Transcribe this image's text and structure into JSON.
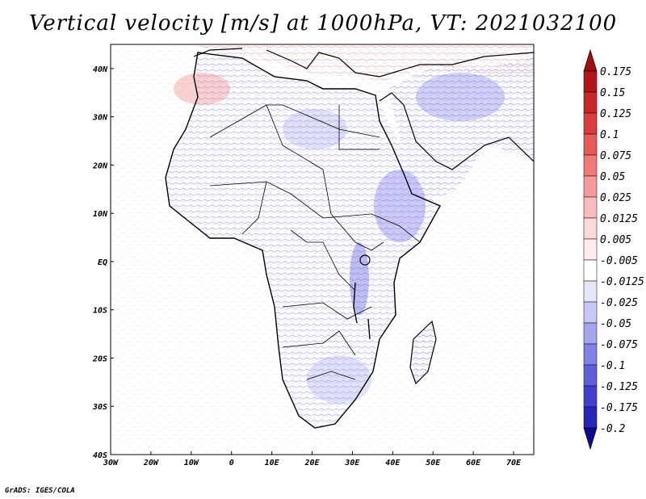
{
  "title": "Vertical velocity [m/s] at 1000hPa, VT: 2021032100",
  "footer": "GrADS: IGES/COLA",
  "map": {
    "lon_range": [
      -30,
      75
    ],
    "lat_range": [
      -40,
      45
    ],
    "x_ticks": [
      {
        "lon": -30,
        "label": "30W"
      },
      {
        "lon": -20,
        "label": "20W"
      },
      {
        "lon": -10,
        "label": "10W"
      },
      {
        "lon": 0,
        "label": "0"
      },
      {
        "lon": 10,
        "label": "10E"
      },
      {
        "lon": 20,
        "label": "20E"
      },
      {
        "lon": 30,
        "label": "30E"
      },
      {
        "lon": 40,
        "label": "40E"
      },
      {
        "lon": 50,
        "label": "50E"
      },
      {
        "lon": 60,
        "label": "60E"
      },
      {
        "lon": 70,
        "label": "70E"
      }
    ],
    "y_ticks": [
      {
        "lat": 40,
        "label": "40N"
      },
      {
        "lat": 30,
        "label": "30N"
      },
      {
        "lat": 20,
        "label": "20N"
      },
      {
        "lat": 10,
        "label": "10N"
      },
      {
        "lat": 0,
        "label": "EQ"
      },
      {
        "lat": -10,
        "label": "10S"
      },
      {
        "lat": -20,
        "label": "20S"
      },
      {
        "lat": -30,
        "label": "30S"
      },
      {
        "lat": -40,
        "label": "40S"
      }
    ]
  },
  "colorbar": {
    "levels": [
      {
        "label": "0.175",
        "color": "#b4141e"
      },
      {
        "label": "0.15",
        "color": "#c8262a"
      },
      {
        "label": "0.125",
        "color": "#dc3c3c"
      },
      {
        "label": "0.1",
        "color": "#e85a5a"
      },
      {
        "label": "0.075",
        "color": "#f07a7a"
      },
      {
        "label": "0.05",
        "color": "#f59a9a"
      },
      {
        "label": "0.025",
        "color": "#f9bcbc"
      },
      {
        "label": "0.0125",
        "color": "#fcd8d8"
      },
      {
        "label": "0.005",
        "color": "#feecec"
      },
      {
        "label": "-0.005",
        "color": "#ffffff"
      },
      {
        "label": "-0.0125",
        "color": "#e6e6fa"
      },
      {
        "label": "-0.025",
        "color": "#c8c8f5"
      },
      {
        "label": "-0.05",
        "color": "#a5a5ee"
      },
      {
        "label": "-0.075",
        "color": "#8282e6"
      },
      {
        "label": "-0.1",
        "color": "#5f5fdc"
      },
      {
        "label": "-0.125",
        "color": "#4040cf"
      },
      {
        "label": "-0.175",
        "color": "#2626bb"
      },
      {
        "label": "-0.2",
        "color": "#1414a5"
      }
    ],
    "top_color": "#a01010",
    "bottom_color": "#100a90"
  }
}
